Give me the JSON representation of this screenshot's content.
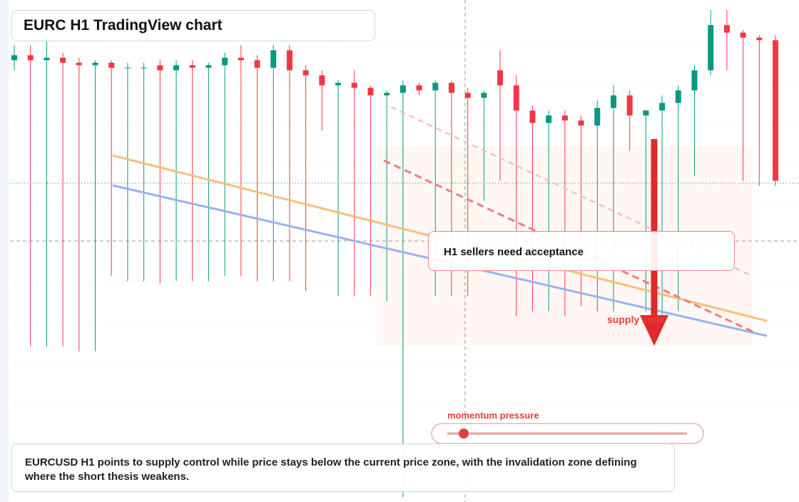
{
  "header": {
    "title": "EURC H1 TradingView chart"
  },
  "chart_data": {
    "type": "candlestick",
    "categories": [
      null,
      null,
      null,
      null,
      null,
      null,
      null,
      null,
      null,
      null,
      null,
      null,
      null,
      null,
      null,
      null,
      null,
      null,
      null,
      null,
      null,
      null,
      null,
      null,
      null,
      null,
      null,
      null,
      null,
      null,
      null,
      null,
      null,
      null,
      null,
      null,
      null,
      null,
      null,
      null,
      null,
      null,
      null,
      null,
      null,
      null,
      null,
      null
    ],
    "open": [
      88,
      89,
      88,
      88.5,
      87.5,
      87,
      87.5,
      86.5,
      86.5,
      87,
      86,
      87,
      86.5,
      87,
      88.5,
      88,
      86.5,
      90,
      86,
      85,
      83,
      83.5,
      82.5,
      81,
      81.5,
      83,
      82,
      83.5,
      81.5,
      80.5,
      86,
      83,
      78,
      75.5,
      77,
      76,
      75,
      78.5,
      81,
      77,
      78,
      79.5,
      82,
      86,
      95,
      93.5,
      92.5,
      92
    ],
    "high": [
      91,
      91,
      92,
      89.5,
      88.5,
      88,
      88,
      87.5,
      87.5,
      88,
      88,
      88,
      87.5,
      89.5,
      91,
      89,
      91,
      91,
      87,
      86,
      84,
      86,
      83,
      82,
      84,
      83.5,
      84,
      84,
      82.5,
      82,
      90,
      85,
      79,
      78,
      78,
      77,
      80,
      83,
      82,
      78,
      81,
      83,
      87,
      98,
      98,
      94,
      93,
      93
    ],
    "low": [
      86,
      31,
      31,
      31,
      30,
      30,
      45,
      44,
      44,
      43.5,
      44,
      44,
      44,
      45,
      45,
      44,
      44,
      44,
      42,
      74,
      41,
      41,
      41,
      40,
      1,
      81,
      41,
      41,
      41,
      60,
      64,
      37,
      38,
      38,
      37,
      39,
      38,
      38,
      70,
      38,
      37,
      38,
      65,
      85,
      86,
      64,
      63,
      63
    ],
    "close": [
      89,
      88,
      88.5,
      87.5,
      87,
      87.5,
      86.5,
      86.5,
      86.5,
      86,
      87,
      86.5,
      87,
      88.5,
      88,
      86.5,
      90,
      86,
      85,
      83,
      83.5,
      82.5,
      81,
      81.5,
      83,
      82,
      83.5,
      81.5,
      80.5,
      81.5,
      83,
      78,
      75.5,
      77,
      76,
      75,
      78.5,
      81,
      77,
      78,
      79.5,
      82,
      86,
      95,
      93.5,
      92.5,
      92,
      64
    ],
    "up_color": "#089981",
    "down_color": "#f23645",
    "ylim": [
      0,
      100
    ]
  },
  "annotations": {
    "note": "H1 sellers need acceptance",
    "zone": "supply zone",
    "momentum": "momentum pressure"
  },
  "footer": {
    "text": "EURCUSD H1 points to supply control while price stays below the current price zone, with the invalidation zone defining where the short thesis weakens."
  }
}
